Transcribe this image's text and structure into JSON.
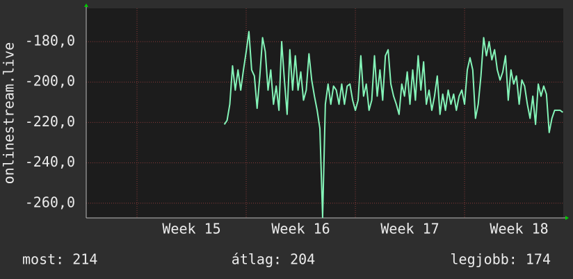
{
  "chart_data": {
    "type": "line",
    "ylabel": "onlinestream.live",
    "ylim": [
      -267.3,
      -163.5
    ],
    "yticks": [
      {
        "value": -260,
        "label": "-260,0"
      },
      {
        "value": -240,
        "label": "-240,0"
      },
      {
        "value": -220,
        "label": "-220,0"
      },
      {
        "value": -200,
        "label": "-200,0"
      },
      {
        "value": -180,
        "label": "-180,0"
      }
    ],
    "xlim": [
      14.535,
      18.904
    ],
    "xticks": [
      {
        "value": 15.5,
        "label": "Week 15"
      },
      {
        "value": 16.5,
        "label": "Week 16"
      },
      {
        "value": 17.5,
        "label": "Week 17"
      },
      {
        "value": 18.5,
        "label": "Week 18"
      }
    ],
    "xgrid": [
      15,
      16,
      17,
      18
    ],
    "grid": true,
    "series": [
      {
        "color": "#84f4b8",
        "x": [
          15.8,
          15.825,
          15.85,
          15.875,
          15.9,
          15.925,
          15.95,
          15.975,
          16,
          16.025,
          16.05,
          16.075,
          16.1,
          16.125,
          16.15,
          16.175,
          16.2,
          16.225,
          16.25,
          16.275,
          16.3,
          16.325,
          16.35,
          16.375,
          16.4,
          16.425,
          16.45,
          16.475,
          16.5,
          16.525,
          16.55,
          16.575,
          16.6,
          16.625,
          16.65,
          16.675,
          16.7,
          16.725,
          16.75,
          16.775,
          16.8,
          16.825,
          16.85,
          16.875,
          16.9,
          16.925,
          16.95,
          16.975,
          17,
          17.025,
          17.05,
          17.075,
          17.1,
          17.125,
          17.15,
          17.175,
          17.2,
          17.225,
          17.25,
          17.275,
          17.3,
          17.325,
          17.35,
          17.375,
          17.4,
          17.425,
          17.45,
          17.475,
          17.5,
          17.525,
          17.55,
          17.575,
          17.6,
          17.625,
          17.65,
          17.675,
          17.7,
          17.725,
          17.75,
          17.775,
          17.8,
          17.825,
          17.85,
          17.875,
          17.9,
          17.925,
          17.95,
          17.975,
          18,
          18.025,
          18.05,
          18.075,
          18.1,
          18.125,
          18.15,
          18.175,
          18.2,
          18.225,
          18.25,
          18.275,
          18.3,
          18.325,
          18.35,
          18.375,
          18.4,
          18.425,
          18.45,
          18.475,
          18.5,
          18.525,
          18.55,
          18.575,
          18.6,
          18.625,
          18.65,
          18.675,
          18.7,
          18.725,
          18.75,
          18.775,
          18.8,
          18.825,
          18.85,
          18.875,
          18.9
        ],
        "values": [
          -221,
          -219,
          -211,
          -192,
          -204,
          -194,
          -204,
          -194,
          -185,
          -175,
          -194,
          -197,
          -213,
          -197,
          -178,
          -185,
          -204,
          -194,
          -211,
          -202,
          -214,
          -180,
          -199,
          -216,
          -184,
          -204,
          -187,
          -204,
          -195,
          -209,
          -204,
          -186,
          -199,
          -207,
          -214,
          -223,
          -267,
          -211,
          -201,
          -211,
          -202,
          -204,
          -211,
          -201,
          -211,
          -202,
          -201,
          -209,
          -214,
          -209,
          -187,
          -207,
          -201,
          -214,
          -209,
          -187,
          -207,
          -194,
          -209,
          -187,
          -184,
          -201,
          -207,
          -211,
          -216,
          -201,
          -207,
          -195,
          -211,
          -194,
          -209,
          -187,
          -204,
          -190,
          -211,
          -204,
          -214,
          -207,
          -197,
          -216,
          -206,
          -214,
          -204,
          -211,
          -206,
          -214,
          -207,
          -204,
          -211,
          -194,
          -188,
          -194,
          -218,
          -211,
          -197,
          -178,
          -187,
          -180,
          -189,
          -184,
          -194,
          -199,
          -195,
          -187,
          -209,
          -194,
          -201,
          -197,
          -211,
          -199,
          -202,
          -211,
          -218,
          -207,
          -221,
          -201,
          -207,
          -202,
          -206,
          -225,
          -218,
          -214,
          -214,
          -214,
          -215
        ]
      }
    ],
    "legend": [
      "most: 214",
      "átlag: 204",
      "legjobb: 174"
    ]
  }
}
